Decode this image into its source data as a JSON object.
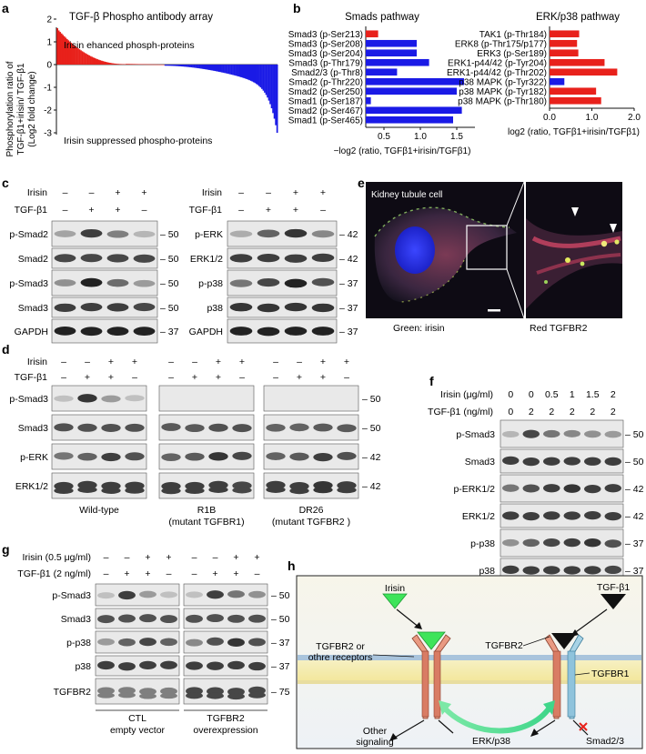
{
  "panel_letters": [
    "a",
    "b",
    "c",
    "d",
    "e",
    "f",
    "g",
    "h"
  ],
  "a": {
    "title": "TGF-β Phospho antibody array",
    "ylabel1": "Phosphorylation ratio of",
    "ylabel2": "TGF-β1+irisin/ TGF-β1",
    "ylabel3": "(Log2 fold change)",
    "enhanced": "Irisin ehanced phosph-proteins",
    "suppressed": "Irisin suppressed phospho-proteins",
    "yticks": [
      "2",
      "1",
      "0",
      "-1",
      "-2",
      "-3"
    ],
    "colors": {
      "pos": "#e8211b",
      "neg": "#1a1ae6"
    }
  },
  "chart_data": [
    {
      "type": "bar",
      "title": "Smads pathway",
      "orientation": "horizontal",
      "categories": [
        "Smad3 (p-Ser213)",
        "Smad3 (p-Ser208)",
        "Smad3 (p-Ser204)",
        "Smad3 (p-Thr179)",
        "Smad2/3 (p-Thr8)",
        "Smad2 (p-Thr220)",
        "Smad2 (p-Ser250)",
        "Smad1 (p-Ser187)",
        "Smad2 (p-Ser467)",
        "Smad1 (p-Ser465)"
      ],
      "values": [
        0.42,
        0.95,
        0.95,
        1.12,
        0.68,
        1.6,
        1.5,
        0.32,
        1.57,
        1.45
      ],
      "bar_colors": [
        "#e8211b",
        "#1a1ae6",
        "#1a1ae6",
        "#1a1ae6",
        "#1a1ae6",
        "#1a1ae6",
        "#1a1ae6",
        "#1a1ae6",
        "#1a1ae6",
        "#1a1ae6"
      ],
      "xlim": [
        0.25,
        1.75
      ],
      "xticks": [
        "0.5",
        "1.0",
        "1.5"
      ],
      "xlabel": "−log2 (ratio, TGFβ1+irisin/TGFβ1)"
    },
    {
      "type": "bar",
      "title": "ERK/p38 pathway",
      "orientation": "horizontal",
      "categories": [
        "TAK1 (p-Thr184)",
        "ERK8 (p-Thr175/p177)",
        "ERK3 (p-Ser189)",
        "ERK1-p44/42 (p-Tyr204)",
        "ERK1-p44/42 (p-Thr202)",
        "p38 MAPK (p-Tyr322)",
        "p38 MAPK (p-Tyr182)",
        "p38 MAPK (p-Thr180)"
      ],
      "values": [
        0.7,
        0.65,
        0.68,
        1.3,
        1.6,
        0.35,
        1.1,
        1.22
      ],
      "bar_colors": [
        "#e8211b",
        "#e8211b",
        "#e8211b",
        "#e8211b",
        "#e8211b",
        "#1a1ae6",
        "#e8211b",
        "#e8211b"
      ],
      "xlim": [
        0,
        2.0
      ],
      "xticks": [
        "0.0",
        "1.0",
        "2.0"
      ],
      "xlabel": "log2 (ratio, TGFβ1+irisin/TGFβ1)"
    }
  ],
  "blots": {
    "irisin": "Irisin",
    "tgf": "TGF-β1",
    "irisin_f": "Irisin (μg/ml)",
    "tgf_f": "TGF-β1 (ng/ml)",
    "irisin_g": "Irisin (0.5 μg/ml)",
    "tgf_g": "TGF-β1 (2 ng/ml)",
    "minus": "–",
    "plus": "+",
    "c_left_rows": [
      "p-Smad2",
      "Smad2",
      "p-Smad3",
      "Smad3",
      "GAPDH"
    ],
    "c_left_mw": [
      "50",
      "50",
      "50",
      "50",
      "37"
    ],
    "c_right_rows": [
      "p-ERK",
      "ERK1/2",
      "p-p38",
      "p38",
      "GAPDH"
    ],
    "c_right_mw": [
      "42",
      "42",
      "37",
      "37",
      "37"
    ],
    "d_rows": [
      "p-Smad3",
      "Smad3",
      "p-ERK",
      "ERK1/2"
    ],
    "d_mw": [
      "50",
      "50",
      "42",
      "42"
    ],
    "d_groups": [
      "Wild-type",
      "R1B",
      "DR26"
    ],
    "d_group_sub": [
      "",
      "(mutant TGFBR1)",
      "(mutant TGFBR2 )"
    ],
    "f_irisin_vals": [
      "0",
      "0",
      "0.5",
      "1",
      "1.5",
      "2"
    ],
    "f_tgf_vals": [
      "0",
      "2",
      "2",
      "2",
      "2",
      "2"
    ],
    "f_rows": [
      "p-Smad3",
      "Smad3",
      "p-ERK1/2",
      "ERK1/2",
      "p-p38",
      "p38"
    ],
    "f_mw": [
      "50",
      "50",
      "42",
      "42",
      "37",
      "37"
    ],
    "g_rows": [
      "p-Smad3",
      "Smad3",
      "p-p38",
      "p38",
      "TGFBR2"
    ],
    "g_mw": [
      "50",
      "50",
      "37",
      "37",
      "75"
    ],
    "g_groups": [
      "CTL",
      "TGFBR2"
    ],
    "g_group_sub": [
      "empty vector",
      "overexpression"
    ]
  },
  "e": {
    "title": "Kidney tubule cell",
    "legend_green": "Green: irisin",
    "legend_red": "Red TGFBR2"
  },
  "h": {
    "irisin": "Irisin",
    "tgf": "TGF-β1",
    "tgfbr2": "TGFBR2",
    "tgfbr2_or1": "TGFBR2 or",
    "tgfbr2_or2": "othre receptors",
    "tgfbr1": "TGFBR1",
    "other1": "Other",
    "other2": "signaling",
    "erk": "ERK/p38",
    "smad": "Smad2/3"
  }
}
